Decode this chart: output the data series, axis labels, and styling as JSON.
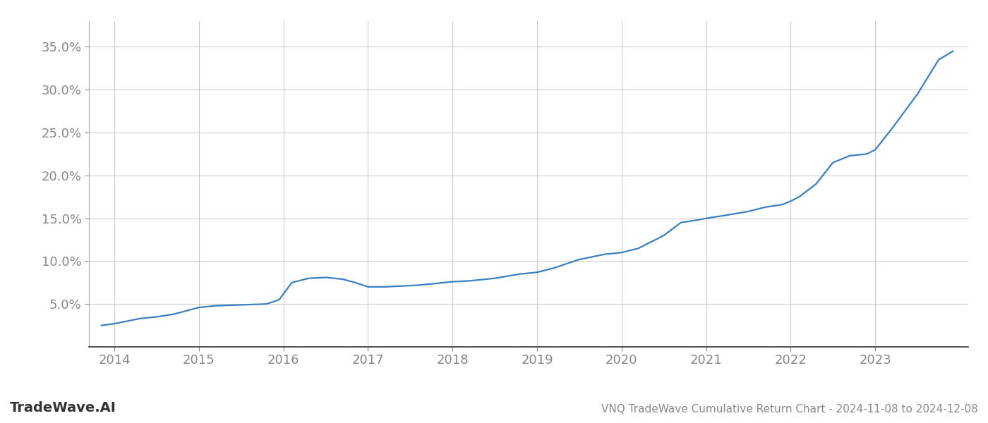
{
  "title": "VNQ TradeWave Cumulative Return Chart - 2024-11-08 to 2024-12-08",
  "watermark": "TradeWave.AI",
  "line_color": "#3a7fc1",
  "background_color": "#ffffff",
  "grid_color": "#cccccc",
  "x_values": [
    2013.85,
    2014.0,
    2014.15,
    2014.3,
    2014.5,
    2014.7,
    2014.85,
    2015.0,
    2015.2,
    2015.5,
    2015.8,
    2015.95,
    2016.1,
    2016.3,
    2016.5,
    2016.7,
    2016.85,
    2017.0,
    2017.2,
    2017.4,
    2017.6,
    2017.8,
    2017.9,
    2018.0,
    2018.2,
    2018.5,
    2018.8,
    2019.0,
    2019.2,
    2019.5,
    2019.8,
    2020.0,
    2020.2,
    2020.5,
    2020.7,
    2020.9,
    2021.0,
    2021.2,
    2021.5,
    2021.7,
    2021.9,
    2022.0,
    2022.1,
    2022.3,
    2022.5,
    2022.7,
    2022.9,
    2023.0,
    2023.2,
    2023.5,
    2023.75,
    2023.92
  ],
  "y_values": [
    2.5,
    2.7,
    3.0,
    3.3,
    3.5,
    3.8,
    4.2,
    4.6,
    4.8,
    4.9,
    5.0,
    5.5,
    7.5,
    8.0,
    8.1,
    7.9,
    7.5,
    7.0,
    7.0,
    7.1,
    7.2,
    7.4,
    7.5,
    7.6,
    7.7,
    8.0,
    8.5,
    8.7,
    9.2,
    10.2,
    10.8,
    11.0,
    11.5,
    13.0,
    14.5,
    14.8,
    15.0,
    15.3,
    15.8,
    16.3,
    16.6,
    17.0,
    17.5,
    19.0,
    21.5,
    22.3,
    22.5,
    23.0,
    25.5,
    29.5,
    33.5,
    34.5
  ],
  "xlim": [
    2013.7,
    2024.1
  ],
  "ylim": [
    0,
    38
  ],
  "yticks": [
    5.0,
    10.0,
    15.0,
    20.0,
    25.0,
    30.0,
    35.0
  ],
  "ytick_labels": [
    "5.0%",
    "10.0%",
    "15.0%",
    "20.0%",
    "25.0%",
    "30.0%",
    "35.0%"
  ],
  "xticks": [
    2014,
    2015,
    2016,
    2017,
    2018,
    2019,
    2020,
    2021,
    2022,
    2023
  ],
  "xtick_labels": [
    "2014",
    "2015",
    "2016",
    "2017",
    "2018",
    "2019",
    "2020",
    "2021",
    "2022",
    "2023"
  ],
  "line_width": 1.6,
  "title_fontsize": 11,
  "tick_fontsize": 13,
  "watermark_fontsize": 14
}
